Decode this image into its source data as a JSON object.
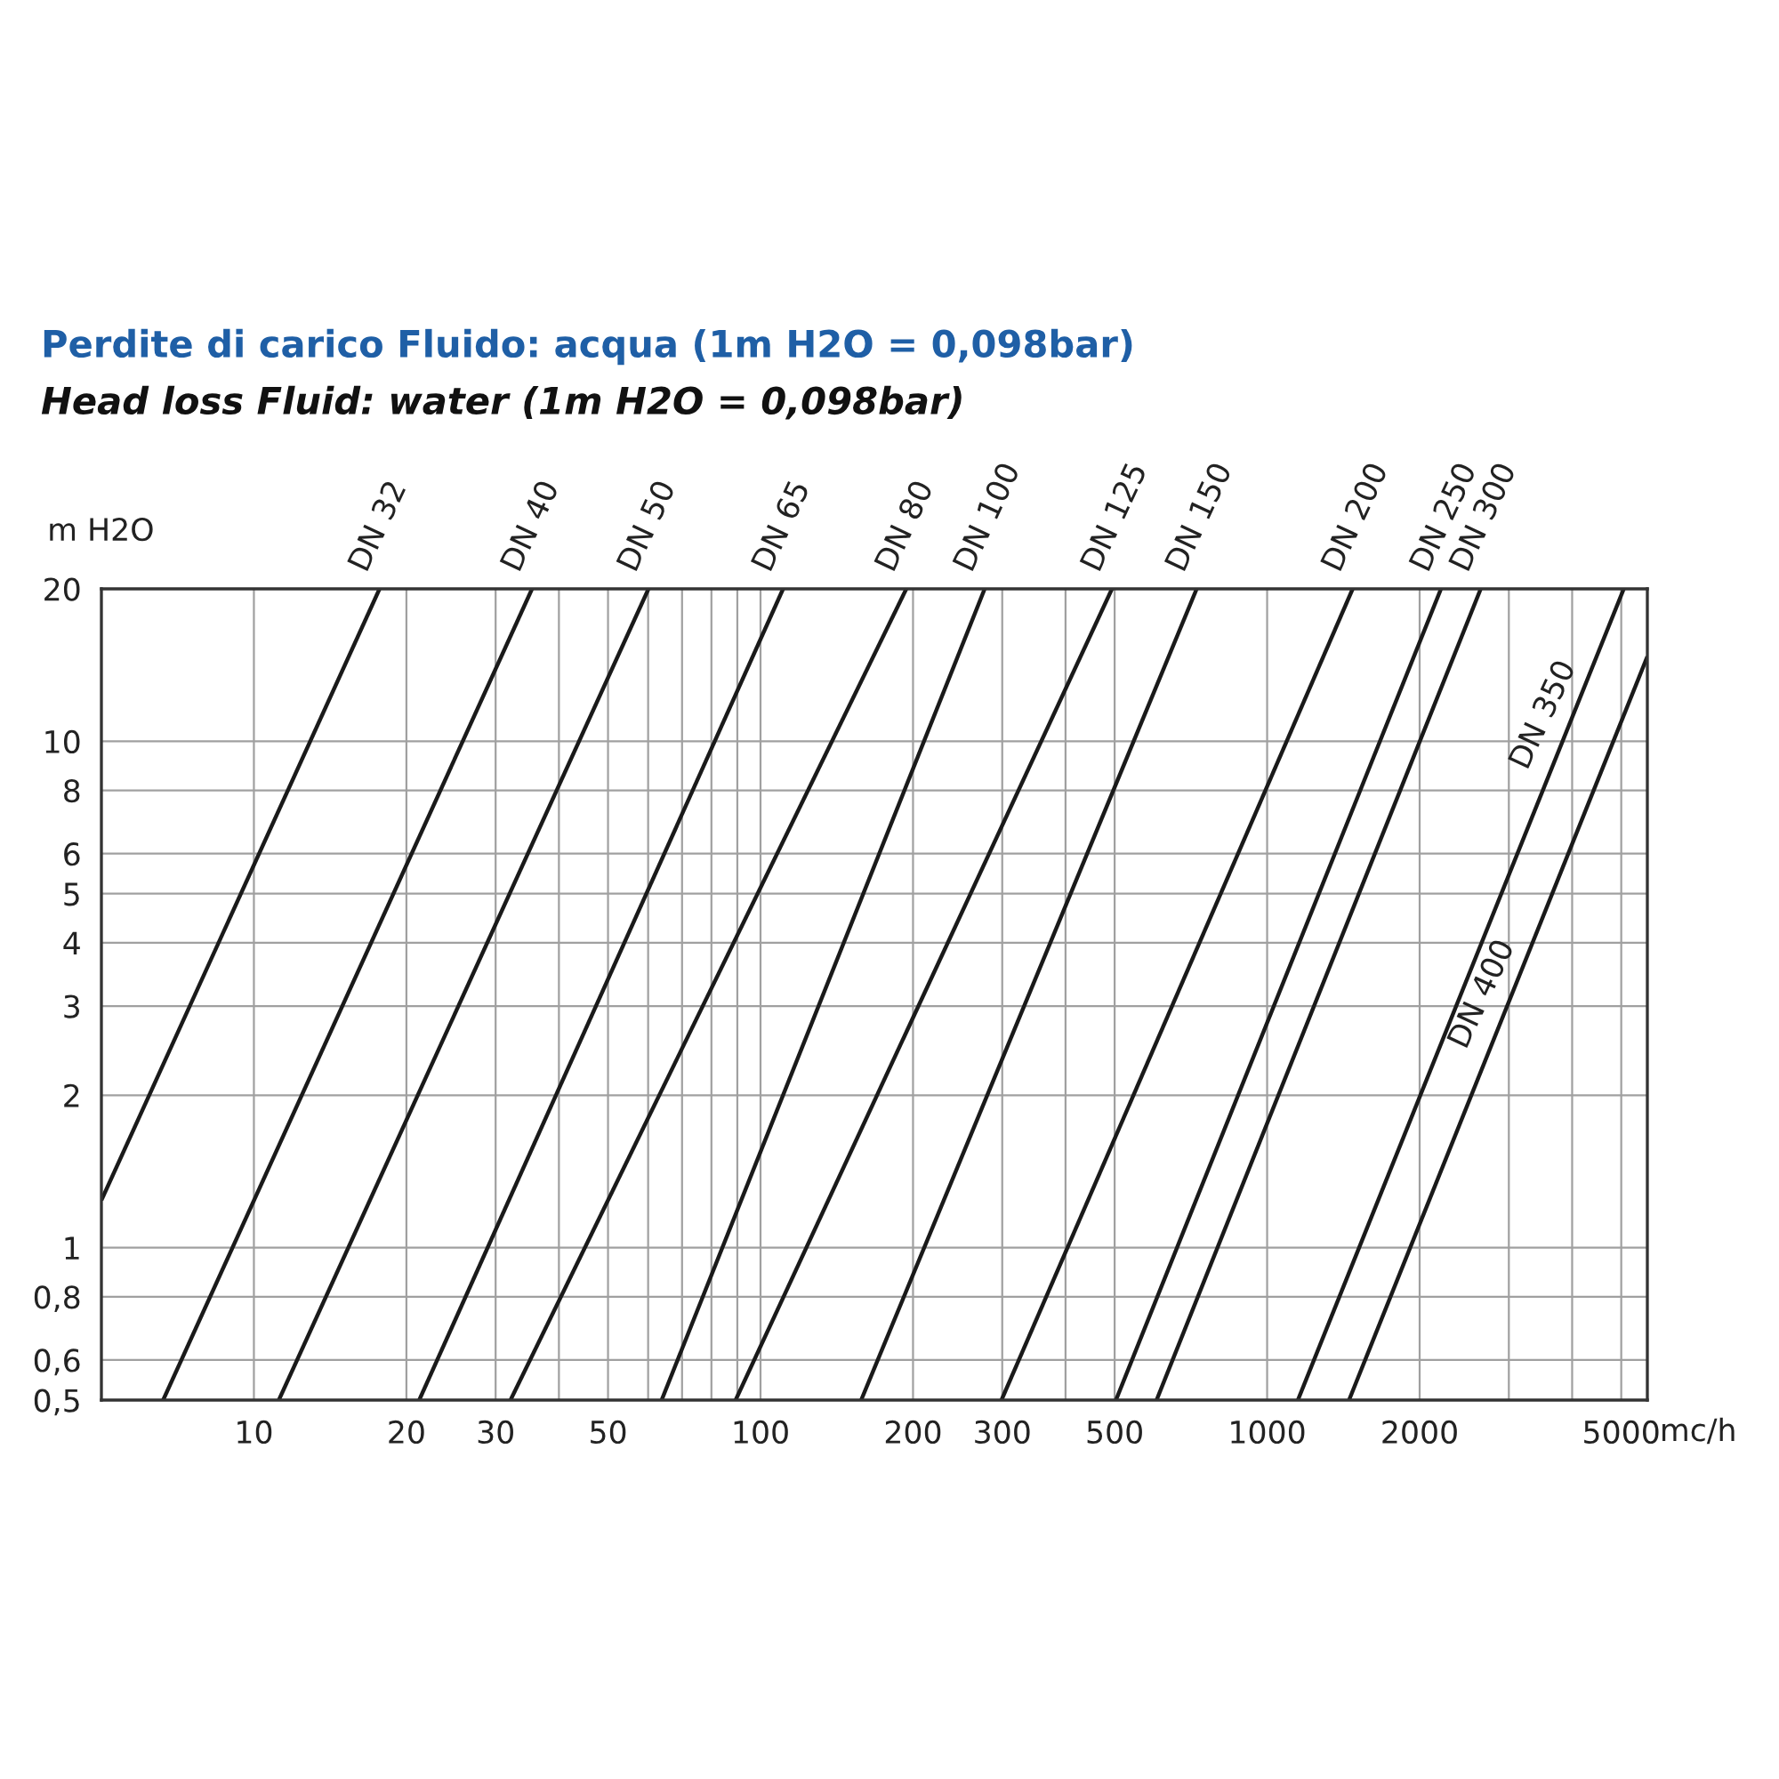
{
  "chart_data": {
    "type": "line",
    "title": "Perdite di carico Fluido: acqua (1m H2O = 0,098bar)",
    "subtitle": "Head loss Fluid: water (1m H2O = 0,098bar)",
    "xlabel": "mc/h",
    "ylabel": "m H2O",
    "log": "xy",
    "grid": true,
    "legend": false,
    "marker": "none",
    "line_style": "solid",
    "xlim": [
      5,
      5630
    ],
    "ylim": [
      0.5,
      20
    ],
    "xticks": [
      10,
      20,
      30,
      {
        "value": 40,
        "label": null
      },
      50,
      {
        "value": 60,
        "label": null
      },
      {
        "value": 70,
        "label": null
      },
      {
        "value": 80,
        "label": null
      },
      {
        "value": 90,
        "label": null
      },
      100,
      200,
      300,
      {
        "value": 400,
        "label": null
      },
      500,
      1000,
      2000,
      {
        "value": 3000,
        "label": null
      },
      {
        "value": 4000,
        "label": null
      },
      5000
    ],
    "yticks": [
      {
        "value": 0.5,
        "label": "0,5"
      },
      {
        "value": 0.6,
        "label": "0,6"
      },
      {
        "value": 0.8,
        "label": "0,8"
      },
      1,
      2,
      3,
      4,
      5,
      6,
      8,
      10,
      20
    ],
    "series": [
      {
        "name": "DN 32",
        "color": "#1a1a1a",
        "x": [
          5,
          17.7
        ],
        "values": [
          1.24,
          20
        ]
      },
      {
        "name": "DN 40",
        "color": "#1a1a1a",
        "x": [
          6.62,
          35.4
        ],
        "values": [
          0.5,
          20
        ]
      },
      {
        "name": "DN 50",
        "color": "#1a1a1a",
        "x": [
          11.2,
          60.1
        ],
        "values": [
          0.5,
          20
        ]
      },
      {
        "name": "DN 65",
        "color": "#1a1a1a",
        "x": [
          21.2,
          110.8
        ],
        "values": [
          0.5,
          20
        ]
      },
      {
        "name": "DN 80",
        "color": "#1a1a1a",
        "x": [
          32.1,
          194
        ],
        "values": [
          0.5,
          20
        ]
      },
      {
        "name": "DN 100",
        "color": "#1a1a1a",
        "x": [
          63.8,
          277
        ],
        "values": [
          0.5,
          20
        ]
      },
      {
        "name": "DN 125",
        "color": "#1a1a1a",
        "x": [
          89.3,
          494
        ],
        "values": [
          0.5,
          20
        ]
      },
      {
        "name": "DN 150",
        "color": "#1a1a1a",
        "x": [
          158,
          726
        ],
        "values": [
          0.5,
          20
        ]
      },
      {
        "name": "DN 200",
        "color": "#1a1a1a",
        "x": [
          299,
          1475
        ],
        "values": [
          0.5,
          20
        ]
      },
      {
        "name": "DN 250",
        "color": "#1a1a1a",
        "x": [
          503,
          2204
        ],
        "values": [
          0.5,
          20
        ]
      },
      {
        "name": "DN 300",
        "color": "#1a1a1a",
        "x": [
          605,
          2640
        ],
        "values": [
          0.5,
          20
        ]
      },
      {
        "name": "DN 350",
        "color": "#1a1a1a",
        "x": [
          1150,
          5058
        ],
        "values": [
          0.5,
          20
        ]
      },
      {
        "name": "DN 400",
        "color": "#1a1a1a",
        "x": [
          1451,
          5630
        ],
        "values": [
          0.5,
          14.7
        ]
      }
    ]
  }
}
